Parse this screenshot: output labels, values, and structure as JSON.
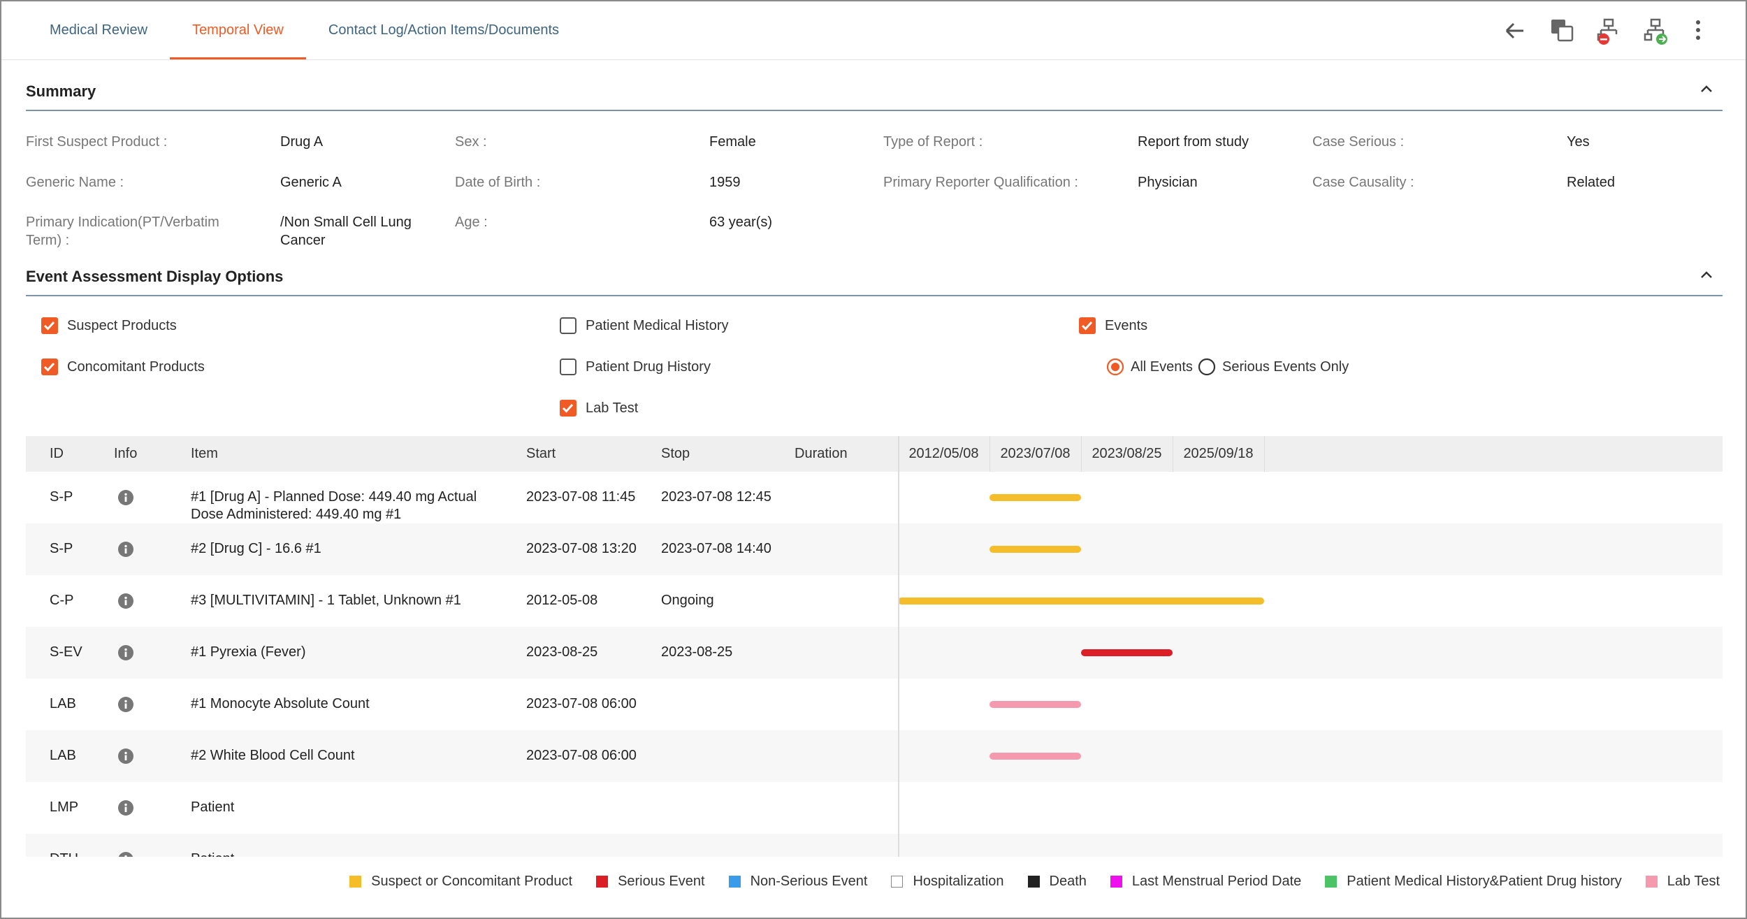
{
  "tabs": [
    {
      "label": "Medical Review",
      "active": false
    },
    {
      "label": "Temporal View",
      "active": true
    },
    {
      "label": "Contact Log/Action Items/Documents",
      "active": false
    }
  ],
  "summary": {
    "title": "Summary",
    "columns": [
      [
        {
          "label": "First Suspect Product :",
          "value": "Drug A"
        },
        {
          "label": "Generic Name :",
          "value": "Generic A"
        },
        {
          "label": "Primary Indication(PT/Verbatim Term) :",
          "value": "/Non Small Cell Lung Cancer"
        }
      ],
      [
        {
          "label": "Sex :",
          "value": "Female"
        },
        {
          "label": "Date of Birth :",
          "value": "1959"
        },
        {
          "label": "Age :",
          "value": "63 year(s)"
        }
      ],
      [
        {
          "label": "Type of Report :",
          "value": "Report from study"
        },
        {
          "label": "Primary Reporter Qualification :",
          "value": "Physician"
        }
      ],
      [
        {
          "label": "Case Serious :",
          "value": "Yes"
        },
        {
          "label": "Case Causality :",
          "value": "Related"
        }
      ]
    ]
  },
  "display_options": {
    "title": "Event Assessment Display Options",
    "columns": [
      [
        {
          "label": "Suspect Products",
          "checked": true
        },
        {
          "label": "Concomitant Products",
          "checked": true
        }
      ],
      [
        {
          "label": "Patient Medical History",
          "checked": false
        },
        {
          "label": "Patient Drug History",
          "checked": false
        },
        {
          "label": "Lab Test",
          "checked": true
        }
      ],
      [
        {
          "label": "Events",
          "checked": true
        }
      ]
    ],
    "radios": [
      {
        "label": "All Events",
        "selected": true
      },
      {
        "label": "Serious Events Only",
        "selected": false
      }
    ]
  },
  "table": {
    "columns": [
      "ID",
      "Info",
      "Item",
      "Start",
      "Stop",
      "Duration"
    ],
    "timeline": [
      "2012/05/08",
      "2023/07/08",
      "2023/08/25",
      "2025/09/18"
    ],
    "rows": [
      {
        "id": "S-P",
        "item": "#1 [Drug A] - Planned Dose: 449.40 mg Actual Dose Administered: 449.40 mg #1",
        "start": "2023-07-08 11:45",
        "stop": "2023-07-08 12:45",
        "color": "#f5bd2a"
      },
      {
        "id": "S-P",
        "item": "#2 [Drug C] - 16.6 #1",
        "start": "2023-07-08 13:20",
        "stop": "2023-07-08 14:40",
        "color": "#f5bd2a"
      },
      {
        "id": "C-P",
        "item": "#3 [MULTIVITAMIN] - 1 Tablet, Unknown #1",
        "start": "2012-05-08",
        "stop": "Ongoing",
        "color": "#f5bd2a"
      },
      {
        "id": "S-EV",
        "item": "#1 Pyrexia (Fever)",
        "start": "2023-08-25",
        "stop": "2023-08-25",
        "color": "#dc1f26"
      },
      {
        "id": "LAB",
        "item": "#1 Monocyte Absolute Count",
        "start": "2023-07-08 06:00",
        "color": "#f59aae"
      },
      {
        "id": "LAB",
        "item": "#2 White Blood Cell Count",
        "start": "2023-07-08 06:00",
        "color": "#f59aae"
      },
      {
        "id": "LMP",
        "item": "Patient"
      },
      {
        "id": "DTH",
        "item": "Patient"
      }
    ]
  },
  "legend": [
    {
      "label": "Suspect or Concomitant Product",
      "color": "#f5bd2a"
    },
    {
      "label": "Serious Event",
      "color": "#dc1f26"
    },
    {
      "label": "Non-Serious Event",
      "color": "#3a9ce8"
    },
    {
      "label": "Hospitalization",
      "color": "#ffffff"
    },
    {
      "label": "Death",
      "color": "#222222"
    },
    {
      "label": "Last Menstrual Period Date",
      "color": "#ee11ee"
    },
    {
      "label": "Patient Medical History&Patient Drug history",
      "color": "#4cc466"
    },
    {
      "label": "Lab Test",
      "color": "#f59aae"
    }
  ]
}
